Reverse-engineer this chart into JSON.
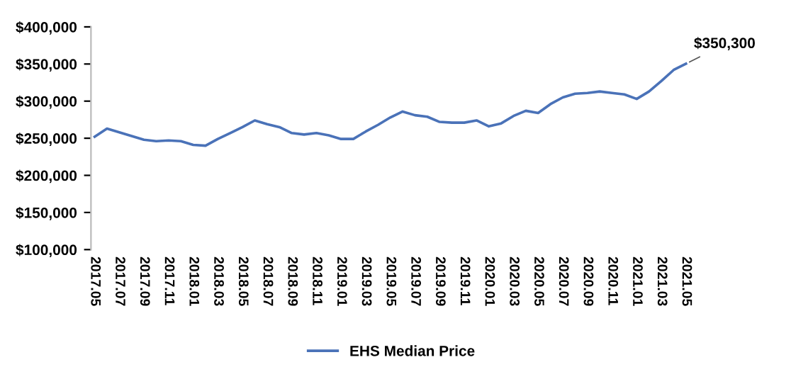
{
  "chart_data": {
    "type": "line",
    "categories": [
      "2017.05",
      null,
      "2017.07",
      null,
      "2017.09",
      null,
      "2017.11",
      null,
      "2018.01",
      null,
      "2018.03",
      null,
      "2018.05",
      null,
      "2018.07",
      null,
      "2018.09",
      null,
      "2018.11",
      null,
      "2019.01",
      null,
      "2019.03",
      null,
      "2019.05",
      null,
      "2019.07",
      null,
      "2019.09",
      null,
      "2019.11",
      null,
      "2020.01",
      null,
      "2020.03",
      null,
      "2020.05",
      null,
      "2020.07",
      null,
      "2020.09",
      null,
      "2020.11",
      null,
      "2021.01",
      null,
      "2021.03",
      null,
      "2021.05"
    ],
    "series": [
      {
        "name": "EHS Median Price",
        "color": "#4a72b8",
        "values": [
          252000,
          263000,
          258000,
          253000,
          248000,
          246000,
          247000,
          246000,
          241000,
          240000,
          249000,
          257000,
          265000,
          274000,
          269000,
          265000,
          257000,
          255000,
          257000,
          254000,
          249000,
          249000,
          259000,
          268000,
          278000,
          286000,
          281000,
          279000,
          272000,
          271000,
          271000,
          274000,
          266000,
          270000,
          280000,
          287000,
          284000,
          296000,
          305000,
          310000,
          311000,
          313000,
          311000,
          309000,
          303000,
          313000,
          327000,
          342000,
          350300
        ]
      }
    ],
    "ylim": [
      100000,
      400000
    ],
    "yticks": [
      {
        "value": 100000,
        "label": "$100,000"
      },
      {
        "value": 150000,
        "label": "$150,000"
      },
      {
        "value": 200000,
        "label": "$200,000"
      },
      {
        "value": 250000,
        "label": "$250,000"
      },
      {
        "value": 300000,
        "label": "$300,000"
      },
      {
        "value": 350000,
        "label": "$350,000"
      },
      {
        "value": 400000,
        "label": "$400,000"
      }
    ],
    "annotations": [
      {
        "text": "$350,300",
        "x": "2021.05",
        "y": 350300
      }
    ],
    "grid": false,
    "legend": "bottom",
    "marker": "none",
    "line_style": "solid"
  }
}
